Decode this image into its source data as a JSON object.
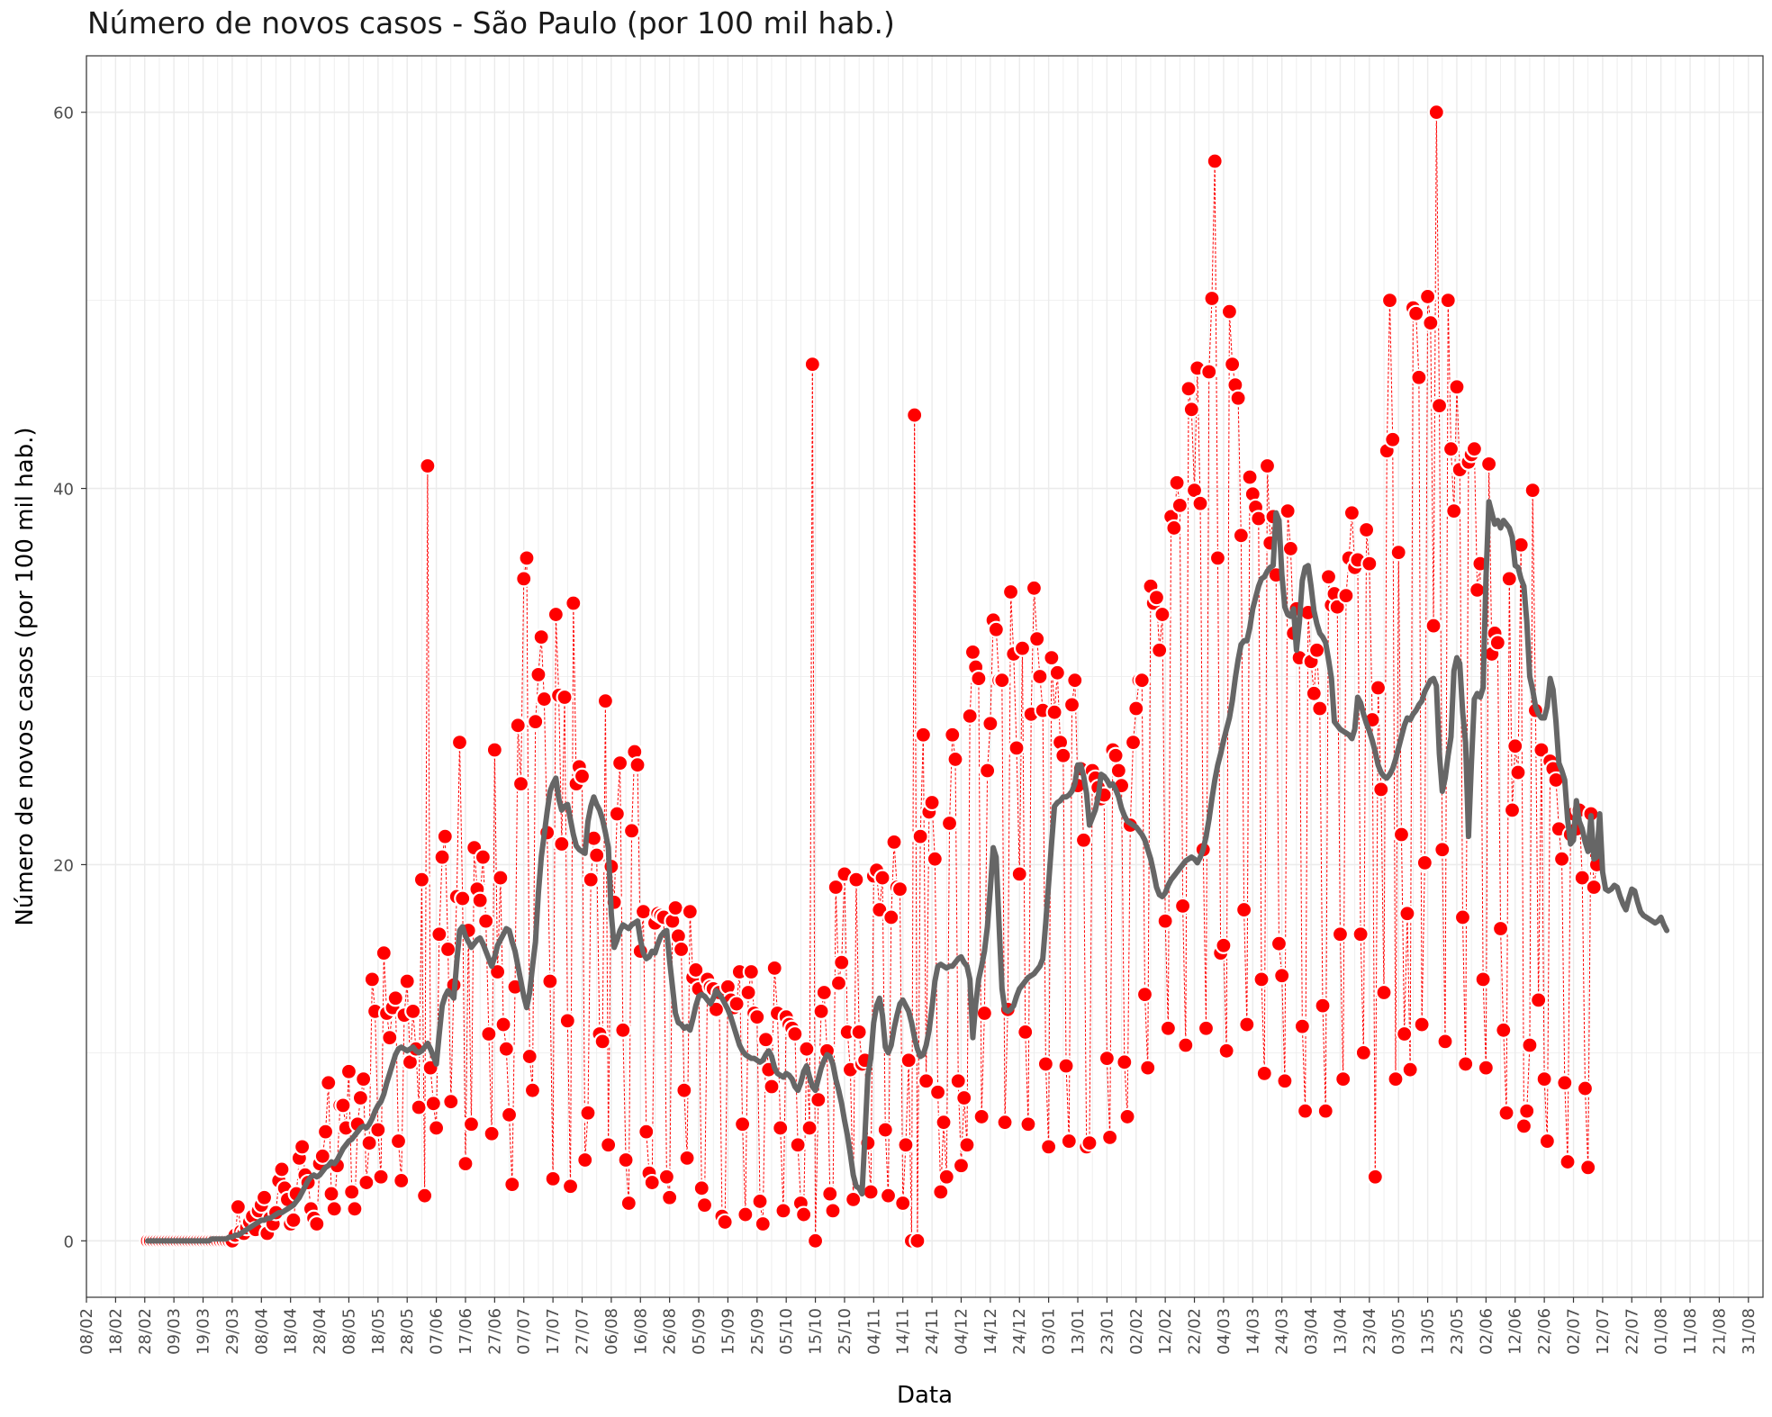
{
  "chart_data": {
    "type": "line",
    "title": "Número de novos casos - São Paulo (por 100 mil hab.)",
    "xlabel": "Data",
    "ylabel": "Número de novos casos (por 100 mil hab.)",
    "ylim": [
      -3,
      63
    ],
    "y_ticks": [
      0,
      20,
      40,
      60
    ],
    "x_tick_labels": [
      "08/02",
      "18/02",
      "28/02",
      "09/03",
      "19/03",
      "29/03",
      "08/04",
      "18/04",
      "28/04",
      "08/05",
      "18/05",
      "28/05",
      "07/06",
      "17/06",
      "27/06",
      "07/07",
      "17/07",
      "27/07",
      "06/08",
      "16/08",
      "26/08",
      "05/09",
      "15/09",
      "25/09",
      "05/10",
      "15/10",
      "25/10",
      "04/11",
      "14/11",
      "24/11",
      "04/12",
      "14/12",
      "24/12",
      "03/01",
      "13/01",
      "23/01",
      "02/02",
      "12/02",
      "22/02",
      "04/03",
      "14/03",
      "24/03",
      "03/04",
      "13/04",
      "23/04",
      "03/05",
      "13/05",
      "23/05",
      "02/06",
      "12/06",
      "22/06",
      "02/07",
      "12/07",
      "22/07",
      "01/08",
      "11/08",
      "21/08",
      "31/08"
    ],
    "x_start": "2020-02-08",
    "x_end": "2021-09-05",
    "data_start": "2020-02-29",
    "data_end": "2021-08-13",
    "grid": true,
    "colors": {
      "daily_cases": "#ff0000",
      "moving_average": "#666666",
      "grid": "#ebebeb"
    },
    "series": [
      {
        "kind": "daily",
        "values": [
          0,
          0,
          0,
          0,
          0,
          0,
          0,
          0,
          0,
          0,
          0,
          0,
          0,
          0,
          0,
          0,
          0,
          0,
          0,
          0,
          0,
          0,
          0,
          0,
          0,
          0,
          0,
          0,
          0,
          0,
          0.3,
          1.8,
          0.5,
          0.4,
          0.7,
          1.0,
          1.3,
          0.6,
          1.6,
          1.9,
          2.3,
          0.4,
          1.2,
          0.9,
          1.5,
          3.2,
          3.8,
          2.8,
          2.2,
          0.9,
          1.1,
          2.5,
          4.4,
          5.0,
          3.5,
          3.1,
          1.7,
          1.2,
          0.9,
          4.1,
          4.5,
          5.8,
          8.4,
          2.5,
          1.7,
          4.0,
          7.2,
          7.2,
          6.0,
          9.0,
          2.6,
          1.7,
          6.2,
          7.6,
          8.6,
          3.1,
          5.2,
          13.9,
          12.2,
          5.9,
          3.4,
          15.3,
          12.1,
          10.8,
          12.4,
          12.9,
          5.3,
          3.2,
          12.0,
          13.8,
          9.5,
          12.2,
          10.2,
          7.1,
          19.2,
          2.4,
          41.2,
          9.2,
          7.3,
          6.0,
          16.3,
          20.4,
          21.5,
          15.5,
          7.4,
          13.6,
          18.3,
          26.5,
          18.2,
          4.1,
          16.5,
          6.2,
          20.9,
          18.7,
          18.1,
          20.4,
          17.0,
          11.0,
          5.7,
          26.1,
          14.3,
          19.3,
          11.5,
          10.2,
          6.7,
          3.0,
          13.5,
          27.4,
          24.3,
          35.2,
          36.3,
          9.8,
          8.0,
          27.6,
          30.1,
          32.1,
          28.8,
          21.7,
          13.8,
          3.3,
          33.3,
          29.0,
          21.1,
          28.9,
          11.7,
          2.9,
          33.9,
          24.3,
          25.2,
          24.7,
          4.3,
          6.8,
          19.2,
          21.4,
          20.5,
          11.0,
          10.6,
          28.7,
          5.1,
          19.9,
          18.0,
          22.7,
          25.4,
          11.2,
          4.3,
          2.0,
          21.8,
          26.0,
          25.3,
          15.4,
          17.5,
          5.8,
          3.6,
          3.1,
          16.9,
          17.4,
          17.3,
          17.2,
          3.4,
          2.3,
          17.0,
          17.7,
          16.2,
          15.5,
          8.0,
          4.4,
          17.5,
          14.0,
          14.4,
          13.4,
          2.8,
          1.9,
          13.9,
          13.5,
          13.4,
          12.3,
          13.2,
          1.3,
          1.0,
          13.5,
          12.8,
          12.4,
          12.6,
          14.3,
          6.2,
          1.4,
          13.2,
          14.3,
          12.1,
          11.9,
          2.1,
          0.9,
          10.7,
          9.1,
          8.2,
          14.5,
          12.1,
          6.0,
          1.6,
          11.9,
          11.5,
          11.3,
          11.0,
          5.1,
          2.0,
          1.4,
          10.2,
          6.0,
          46.6,
          0,
          7.5,
          12.2,
          13.2,
          10.1,
          2.5,
          1.6,
          18.8,
          13.7,
          14.8,
          19.5,
          11.1,
          9.1,
          2.2,
          19.2,
          11.1,
          9.4,
          9.6,
          5.2,
          2.6,
          19.4,
          19.7,
          17.6,
          19.3,
          5.9,
          2.4,
          17.2,
          21.2,
          18.8,
          18.7,
          2.0,
          5.1,
          9.6,
          0,
          43.9,
          0,
          21.5,
          26.9,
          8.5,
          22.8,
          23.3,
          20.3,
          7.9,
          2.6,
          6.3,
          3.4,
          22.2,
          26.9,
          25.6,
          8.5,
          4.0,
          7.6,
          5.1,
          27.9,
          31.3,
          30.5,
          29.9,
          6.6,
          12.1,
          25.0,
          27.5,
          33.0,
          32.5,
          29.8,
          29.8,
          6.3,
          12.3,
          34.5,
          31.2,
          26.2,
          19.5,
          31.5,
          11.1,
          6.2,
          28.0,
          34.7,
          32.0,
          30.0,
          28.2,
          9.4,
          5.0,
          31.0,
          28.1,
          30.2,
          26.5,
          25.8,
          9.3,
          5.3,
          28.5,
          29.8,
          24.2,
          25.1,
          21.3,
          5.0,
          5.2,
          25.0,
          24.6,
          24.1,
          23.5,
          23.7,
          9.7,
          5.5,
          26.1,
          25.8,
          25.0,
          24.2,
          9.5,
          6.6,
          22.1,
          26.5,
          28.3,
          29.8,
          29.8,
          13.1,
          9.2,
          34.8,
          33.9,
          34.2,
          31.4,
          33.3,
          17.0,
          11.3,
          38.5,
          37.9,
          40.3,
          39.1,
          17.8,
          10.4,
          45.3,
          44.2,
          39.9,
          46.4,
          39.2,
          20.8,
          11.3,
          46.2,
          50.1,
          57.4,
          36.3,
          15.3,
          15.7,
          10.1,
          49.4,
          46.6,
          45.5,
          44.8,
          37.5,
          17.6,
          11.5,
          40.6,
          39.7,
          39.0,
          38.4,
          13.9,
          8.9,
          41.2,
          37.1,
          38.5,
          35.4,
          15.8,
          14.1,
          8.5,
          38.8,
          36.8,
          32.3,
          33.6,
          31.0,
          11.4,
          6.9,
          33.4,
          30.8,
          29.1,
          31.4,
          28.3,
          12.5,
          6.9,
          35.3,
          33.8,
          34.4,
          33.7,
          16.3,
          8.6,
          34.3,
          36.3,
          38.7,
          35.8,
          36.2,
          16.3,
          10.0,
          37.8,
          36.0,
          27.7,
          3.4,
          29.4,
          24.0,
          13.2,
          42.0,
          50.0,
          42.6,
          8.6,
          36.6,
          21.6,
          11.0,
          17.4,
          9.1,
          49.6,
          49.3,
          45.9,
          11.5,
          20.1,
          50.2,
          48.8,
          32.7,
          60.0,
          44.4,
          20.8,
          10.6,
          50.0,
          42.1,
          38.8,
          45.4,
          41.0,
          17.2,
          9.4,
          41.4,
          41.8,
          42.1,
          34.6,
          36.0,
          13.9,
          9.2,
          41.3,
          31.2,
          32.3,
          31.8,
          16.6,
          11.2,
          6.8,
          35.2,
          22.9,
          26.3,
          24.9,
          37.0,
          6.1,
          6.9,
          10.4,
          39.9,
          28.2,
          12.8,
          26.1,
          8.6,
          5.3,
          25.5,
          25.1,
          24.5,
          21.9,
          20.3,
          8.4,
          4.2,
          21.6,
          22.7,
          21.9,
          22.9,
          19.3,
          8.1,
          3.9,
          22.7,
          18.8,
          20.0
        ]
      },
      {
        "kind": "moving_average",
        "values": [
          0,
          0,
          0,
          0,
          0,
          0,
          0,
          0,
          0,
          0,
          0,
          0,
          0,
          0,
          0,
          0,
          0,
          0,
          0,
          0,
          0,
          0,
          0.1,
          0.1,
          0.1,
          0.1,
          0.1,
          0.1,
          0.2,
          0.2,
          0.3,
          0.3,
          0.4,
          0.5,
          0.6,
          0.7,
          0.8,
          0.9,
          1.0,
          1.1,
          1.1,
          1.2,
          1.2,
          1.3,
          1.4,
          1.5,
          1.5,
          1.6,
          1.7,
          1.8,
          1.9,
          2.1,
          2.3,
          2.6,
          2.9,
          3.2,
          3.4,
          3.5,
          3.4,
          3.5,
          3.7,
          3.9,
          4.0,
          4.2,
          4.1,
          4.3,
          4.6,
          4.9,
          5.1,
          5.3,
          5.4,
          5.6,
          5.8,
          6.0,
          6.1,
          6.0,
          6.2,
          6.5,
          6.9,
          7.2,
          7.4,
          7.8,
          8.4,
          8.9,
          9.4,
          9.9,
          10.2,
          10.3,
          10.2,
          10.1,
          10.2,
          10.3,
          10.1,
          10.0,
          10.1,
          10.3,
          10.5,
          10.2,
          9.8,
          9.4,
          11.0,
          12.5,
          13.0,
          13.3,
          13.1,
          12.9,
          14.8,
          16.5,
          16.7,
          16.2,
          15.9,
          15.6,
          15.8,
          16.0,
          16.1,
          15.8,
          15.4,
          15.0,
          14.6,
          15.1,
          15.7,
          16.0,
          16.3,
          16.6,
          16.5,
          15.9,
          15.4,
          14.6,
          13.8,
          13.0,
          12.4,
          13.2,
          14.6,
          15.9,
          18.5,
          20.4,
          21.6,
          22.8,
          23.9,
          24.3,
          24.6,
          23.5,
          22.9,
          23.1,
          23.2,
          22.4,
          21.6,
          21.0,
          20.8,
          20.7,
          20.6,
          22.3,
          23.1,
          23.6,
          23.2,
          22.9,
          22.4,
          21.7,
          20.9,
          17.4,
          15.6,
          16.0,
          16.5,
          16.8,
          16.7,
          16.6,
          16.8,
          16.9,
          17.0,
          16.0,
          15.3,
          15.0,
          15.1,
          15.4,
          15.3,
          15.8,
          16.2,
          16.4,
          16.5,
          14.9,
          13.5,
          12.1,
          11.6,
          11.5,
          11.3,
          11.4,
          11.2,
          11.8,
          12.5,
          13.0,
          13.1,
          13.0,
          12.8,
          12.6,
          12.9,
          13.3,
          13.1,
          12.9,
          12.6,
          12.3,
          11.9,
          11.4,
          10.9,
          10.4,
          10.1,
          9.9,
          9.8,
          9.7,
          9.7,
          9.6,
          9.5,
          9.6,
          9.9,
          10.1,
          9.8,
          9.2,
          8.9,
          8.8,
          8.7,
          8.9,
          8.8,
          8.6,
          8.2,
          8.0,
          8.4,
          9.0,
          9.3,
          8.7,
          8.2,
          8.0,
          8.6,
          9.2,
          9.6,
          9.9,
          9.8,
          9.4,
          8.6,
          8.0,
          7.3,
          6.4,
          5.6,
          4.6,
          3.5,
          2.9,
          2.8,
          2.5,
          5.6,
          8.8,
          9.7,
          11.6,
          12.5,
          12.9,
          12.0,
          10.3,
          10.0,
          10.4,
          11.3,
          12.0,
          12.6,
          12.8,
          12.5,
          12.2,
          11.6,
          10.8,
          10.2,
          9.8,
          9.9,
          10.4,
          11.2,
          12.4,
          13.8,
          14.6,
          14.7,
          14.6,
          14.5,
          14.6,
          14.6,
          14.8,
          15.0,
          15.1,
          14.8,
          14.6,
          13.9,
          10.8,
          12.6,
          13.9,
          14.6,
          15.4,
          16.7,
          18.7,
          20.9,
          20.4,
          16.8,
          13.4,
          12.3,
          12.2,
          12.3,
          12.5,
          13.0,
          13.4,
          13.6,
          13.8,
          14.0,
          14.1,
          14.2,
          14.4,
          14.6,
          15.0,
          16.9,
          19.0,
          21.1,
          23.1,
          23.3,
          23.4,
          23.6,
          23.6,
          23.7,
          23.9,
          24.3,
          25.3,
          25.3,
          24.7,
          23.8,
          22.1,
          22.5,
          22.9,
          23.6,
          24.8,
          24.7,
          24.5,
          24.2,
          24.3,
          24.0,
          23.6,
          23.0,
          22.6,
          22.3,
          22.2,
          22.1,
          22.0,
          21.8,
          21.6,
          21.3,
          20.8,
          20.3,
          19.6,
          18.8,
          18.4,
          18.3,
          18.5,
          18.9,
          19.2,
          19.4,
          19.6,
          19.8,
          20.0,
          20.2,
          20.3,
          20.4,
          20.3,
          20.1,
          20.4,
          20.8,
          21.5,
          22.4,
          23.5,
          24.5,
          25.3,
          25.9,
          26.6,
          27.2,
          27.8,
          28.7,
          29.9,
          30.9,
          31.7,
          31.9,
          31.9,
          32.6,
          33.6,
          34.2,
          34.8,
          35.2,
          35.3,
          35.6,
          35.8,
          35.9,
          38.7,
          38.3,
          35.4,
          33.7,
          33.3,
          33.2,
          33.6,
          31.4,
          32.9,
          35.1,
          35.8,
          35.9,
          34.8,
          33.5,
          32.8,
          32.3,
          32.1,
          31.8,
          30.9,
          29.9,
          27.6,
          27.4,
          27.2,
          27.1,
          27.0,
          26.9,
          26.7,
          27.2,
          28.9,
          28.6,
          28.0,
          27.5,
          27.1,
          26.6,
          26.0,
          25.3,
          24.9,
          24.7,
          24.6,
          24.8,
          25.1,
          25.6,
          26.2,
          26.8,
          27.4,
          27.8,
          27.7,
          28.0,
          28.2,
          28.5,
          28.7,
          29.2,
          29.5,
          29.8,
          29.9,
          29.5,
          25.9,
          23.9,
          24.6,
          25.8,
          26.8,
          30.3,
          31.0,
          30.7,
          28.1,
          26.5,
          21.5,
          25.4,
          28.8,
          29.1,
          28.9,
          29.4,
          35.3,
          39.3,
          38.7,
          38.1,
          38.3,
          37.9,
          38.3,
          38.1,
          37.9,
          37.4,
          35.9,
          35.8,
          35.2,
          34.8,
          32.9,
          30.0,
          29.3,
          28.4,
          28.0,
          27.8,
          27.8,
          28.4,
          29.9,
          29.3,
          27.6,
          25.4,
          25.0,
          24.5,
          22.4,
          21.1,
          21.3,
          23.4,
          22.3,
          21.9,
          21.2,
          20.7,
          22.6,
          20.3,
          20.4,
          22.7,
          19.6,
          18.7,
          18.6,
          18.7,
          18.9,
          18.8,
          18.3,
          17.9,
          17.6,
          18.2,
          18.7,
          18.6,
          18.0,
          17.5,
          17.3,
          17.2,
          17.1,
          17.0,
          16.9,
          17.0,
          17.2,
          16.8,
          16.5
        ]
      }
    ]
  }
}
